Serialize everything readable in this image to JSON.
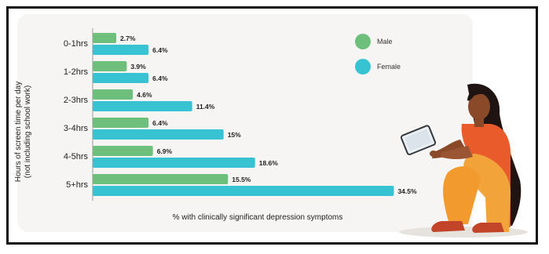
{
  "chart_data": {
    "type": "bar",
    "orientation": "horizontal",
    "ylabel": [
      "Hours of screen time per day",
      "(not including school work)"
    ],
    "xlabel": "% with clinically significant depression symptoms",
    "categories": [
      "0-1hrs",
      "1-2hrs",
      "2-3hrs",
      "3-4hrs",
      "4-5hrs",
      "5+hrs"
    ],
    "series": [
      {
        "name": "Male",
        "color": "#6dbf7b",
        "values": [
          2.7,
          3.9,
          4.6,
          6.4,
          6.9,
          15.5
        ],
        "labels": [
          "2.7%",
          "3.9%",
          "4.6%",
          "6.4%",
          "6.9%",
          "15.5%"
        ]
      },
      {
        "name": "Female",
        "color": "#38c3d3",
        "values": [
          6.4,
          6.4,
          11.4,
          15,
          18.6,
          34.5
        ],
        "labels": [
          "6.4%",
          "6.4%",
          "11.4%",
          "15%",
          "18.6%",
          "34.5%"
        ]
      }
    ],
    "xlim": [
      0,
      35
    ],
    "legend_position": "top-right",
    "grid": false
  },
  "illustration": {
    "icon": "person-with-tablet-illustration"
  }
}
